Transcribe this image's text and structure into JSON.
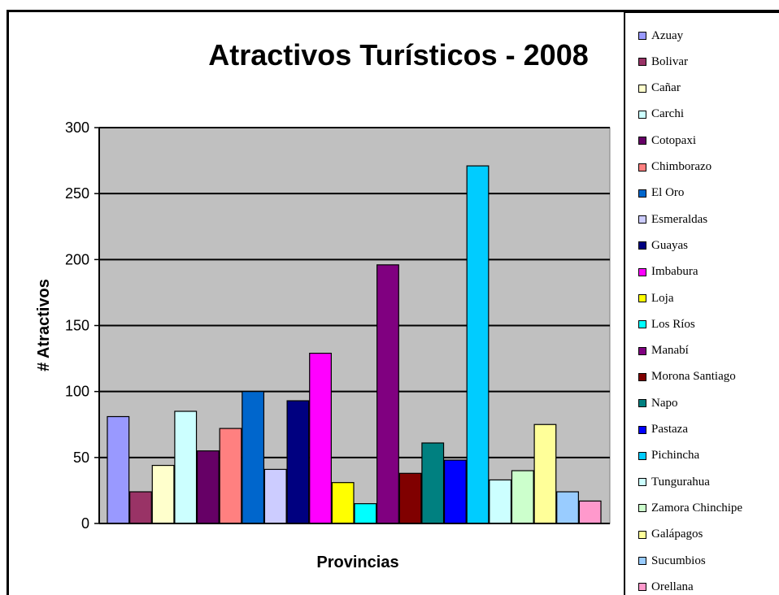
{
  "chart_data": {
    "type": "bar",
    "title": "Atractivos Turísticos - 2008",
    "xlabel": "Provincias",
    "ylabel": "# Atractivos",
    "ylim": [
      0,
      300
    ],
    "yticks": [
      "0",
      "50",
      "100",
      "150",
      "200",
      "250",
      "300"
    ],
    "grid": true,
    "legend_position": "right",
    "plot_background": "#c0c0c0",
    "series": [
      {
        "name": "Azuay",
        "value": 81,
        "color": "#9999ff"
      },
      {
        "name": "Bolivar",
        "value": 24,
        "color": "#993366"
      },
      {
        "name": "Cañar",
        "value": 44,
        "color": "#ffffcc"
      },
      {
        "name": "Carchi",
        "value": 85,
        "color": "#ccffff"
      },
      {
        "name": "Cotopaxi",
        "value": 55,
        "color": "#660066"
      },
      {
        "name": "Chimborazo",
        "value": 72,
        "color": "#ff8080"
      },
      {
        "name": "El Oro",
        "value": 100,
        "color": "#0066cc"
      },
      {
        "name": "Esmeraldas",
        "value": 41,
        "color": "#ccccff"
      },
      {
        "name": "Guayas",
        "value": 93,
        "color": "#000080"
      },
      {
        "name": "Imbabura",
        "value": 129,
        "color": "#ff00ff"
      },
      {
        "name": "Loja",
        "value": 31,
        "color": "#ffff00"
      },
      {
        "name": "Los Ríos",
        "value": 15,
        "color": "#00ffff"
      },
      {
        "name": "Manabí",
        "value": 196,
        "color": "#800080"
      },
      {
        "name": "Morona Santiago",
        "value": 38,
        "color": "#800000"
      },
      {
        "name": "Napo",
        "value": 61,
        "color": "#008080"
      },
      {
        "name": "Pastaza",
        "value": 48,
        "color": "#0000ff"
      },
      {
        "name": "Pichincha",
        "value": 271,
        "color": "#00ccff"
      },
      {
        "name": "Tungurahua",
        "value": 33,
        "color": "#ccffff"
      },
      {
        "name": "Zamora Chinchipe",
        "value": 40,
        "color": "#ccffcc"
      },
      {
        "name": "Galápagos",
        "value": 75,
        "color": "#ffff99"
      },
      {
        "name": "Sucumbios",
        "value": 24,
        "color": "#99ccff"
      },
      {
        "name": "Orellana",
        "value": 17,
        "color": "#ff99cc"
      }
    ]
  }
}
